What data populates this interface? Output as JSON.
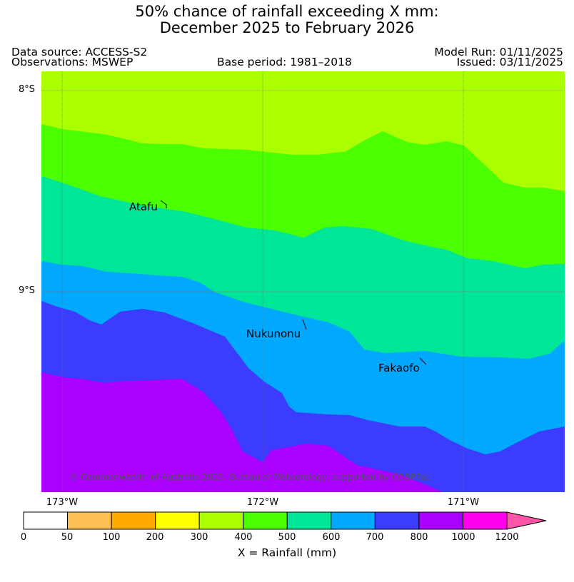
{
  "title": {
    "line1": "50% chance of rainfall exceeding X mm:",
    "line2": "December 2025 to February 2026"
  },
  "meta": {
    "data_source": "Data source: ACCESS-S2",
    "observations": "Observations: MSWEP",
    "base_period": "Base period: 1981–2018",
    "model_run": "Model Run: 01/11/2025",
    "issued": "Issued: 03/11/2025"
  },
  "map": {
    "lat_labels": [
      "8°S",
      "9°S"
    ],
    "lon_labels": [
      "173°W",
      "172°W",
      "171°W"
    ],
    "places": [
      "Atafu",
      "Nukunonu",
      "Fakaofo"
    ],
    "copyright": "© Commonwealth of Australia 2025, Bureau of Meteorology, supported by COSPPac"
  },
  "colorbar": {
    "ticks": [
      "0",
      "50",
      "100",
      "200",
      "300",
      "400",
      "500",
      "600",
      "700",
      "800",
      "1000",
      "1200"
    ],
    "colors": [
      "#ffffff",
      "#ffbf55",
      "#ffaa00",
      "#ffff00",
      "#aaff00",
      "#4cff00",
      "#00e699",
      "#00a8ff",
      "#3c3cff",
      "#aa00ff",
      "#ff00ee"
    ],
    "extend_color": "#ff55a8",
    "label": "X = Rainfall (mm)"
  },
  "colors": {
    "band_300_400": "#aaff00",
    "band_400_500": "#4cff00",
    "band_500_600": "#00e699",
    "band_600_700": "#00a8ff",
    "band_700_800": "#3c3cff",
    "band_800_1000": "#aa00ff"
  }
}
